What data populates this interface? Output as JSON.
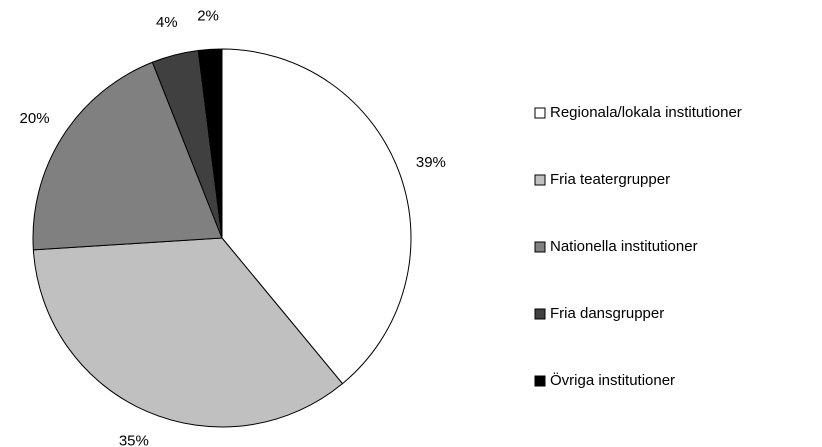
{
  "chart_data": {
    "type": "pie",
    "categories": [
      "Regionala/lokala institutioner",
      "Fria teatergrupper",
      "Nationella institutioner",
      "Fria dansgrupper",
      "Övriga institutioner"
    ],
    "values": [
      39,
      35,
      20,
      4,
      2
    ],
    "value_labels": [
      "39%",
      "35%",
      "20%",
      "4%",
      "2%"
    ],
    "colors": [
      "#ffffff",
      "#c0c0c0",
      "#808080",
      "#404040",
      "#000000"
    ],
    "legend": "right"
  }
}
